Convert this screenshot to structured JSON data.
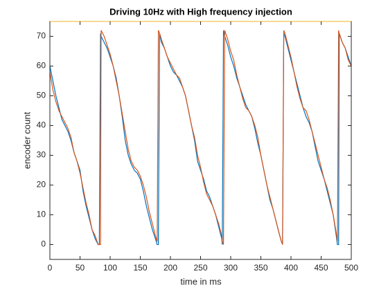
{
  "chart_data": {
    "type": "line",
    "title": "Driving 10Hz with High frequency injection",
    "x_label": "time in ms",
    "y_label": "encoder count",
    "xlim": [
      0,
      500
    ],
    "ylim": [
      -5,
      75
    ],
    "xticks": [
      0,
      50,
      100,
      150,
      200,
      250,
      300,
      350,
      400,
      450,
      500
    ],
    "yticks": [
      0,
      10,
      20,
      30,
      40,
      50,
      60,
      70
    ],
    "grid": false,
    "x": [
      0,
      5,
      10,
      15,
      20,
      25,
      30,
      35,
      40,
      45,
      50,
      55,
      60,
      65,
      70,
      75,
      80,
      82,
      84,
      85,
      90,
      95,
      100,
      105,
      110,
      115,
      120,
      125,
      130,
      135,
      140,
      145,
      150,
      155,
      160,
      165,
      170,
      175,
      178,
      180,
      182,
      185,
      190,
      195,
      200,
      205,
      210,
      215,
      220,
      225,
      230,
      235,
      240,
      245,
      250,
      255,
      260,
      265,
      270,
      275,
      280,
      285,
      286,
      288,
      290,
      295,
      300,
      305,
      310,
      315,
      320,
      325,
      330,
      335,
      340,
      345,
      350,
      355,
      360,
      365,
      370,
      375,
      380,
      384,
      386,
      388,
      390,
      395,
      400,
      405,
      410,
      415,
      420,
      425,
      430,
      435,
      440,
      445,
      450,
      455,
      460,
      465,
      470,
      475,
      477,
      479,
      480,
      485,
      490,
      495,
      500
    ],
    "series": [
      {
        "color": "#0072BD",
        "values": [
          60,
          55,
          50,
          46,
          42,
          40,
          38,
          35,
          31,
          28,
          25,
          18,
          13,
          9,
          5,
          2,
          0,
          0,
          71,
          70,
          68,
          66,
          63,
          60,
          56,
          50,
          43,
          35,
          30,
          27,
          25,
          24,
          22,
          18,
          13,
          9,
          5,
          2,
          0,
          0,
          71,
          68,
          66,
          63,
          60,
          58,
          57,
          55,
          53,
          50,
          45,
          40,
          35,
          28,
          25,
          22,
          18,
          16,
          13,
          10,
          6,
          2,
          0,
          72,
          70,
          67,
          63,
          60,
          56,
          53,
          50,
          47,
          45,
          43,
          39,
          34,
          30,
          25,
          20,
          15,
          12,
          8,
          4,
          1,
          0,
          71,
          70,
          66,
          62,
          58,
          54,
          50,
          46,
          43,
          41,
          38,
          33,
          28,
          25,
          22,
          18,
          14,
          10,
          3,
          0,
          0,
          71,
          68,
          66,
          63,
          60
        ]
      },
      {
        "color": "#D95319",
        "values": [
          58,
          52,
          48,
          45,
          43,
          41,
          39,
          36,
          31,
          28,
          24,
          19,
          14,
          10,
          5,
          3,
          0,
          0,
          0,
          72,
          70,
          67,
          64,
          60,
          55,
          50,
          44,
          38,
          32,
          28,
          26,
          25,
          23,
          20,
          16,
          11,
          7,
          3,
          1,
          72,
          71,
          69,
          66,
          63,
          61,
          59,
          57,
          56,
          53,
          50,
          45,
          40,
          36,
          30,
          26,
          21,
          17,
          15,
          13,
          10,
          7,
          3,
          1,
          0,
          72,
          69,
          65,
          62,
          57,
          53,
          49,
          46,
          45,
          43,
          40,
          36,
          30,
          25,
          20,
          16,
          12,
          8,
          4,
          1,
          0,
          72,
          71,
          67,
          63,
          58,
          53,
          49,
          46,
          45,
          42,
          38,
          34,
          30,
          26,
          22,
          19,
          15,
          10,
          4,
          1,
          72,
          71,
          68,
          66,
          62,
          60
        ]
      }
    ]
  }
}
